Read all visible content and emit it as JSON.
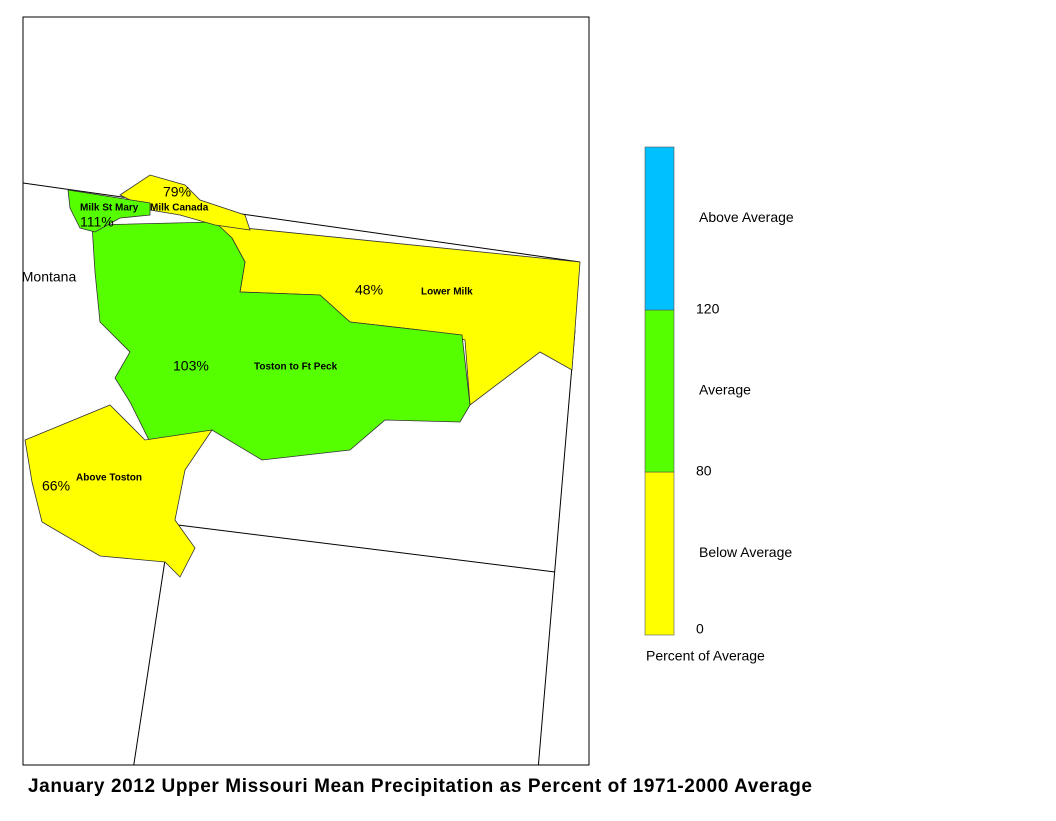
{
  "map": {
    "title": "January 2012 Upper Missouri Mean Precipitation as Percent of 1971-2000 Average",
    "state_label": "Montana",
    "basins": [
      {
        "name": "Milk St Mary",
        "percent": "111%"
      },
      {
        "name": "Milk Canada",
        "percent": "79%"
      },
      {
        "name": "Lower Milk",
        "percent": "48%"
      },
      {
        "name": "Toston to Ft Peck",
        "percent": "103%"
      },
      {
        "name": "Above Toston",
        "percent": "66%"
      }
    ],
    "legend": {
      "title": "Percent of Average",
      "classes": [
        {
          "label": "Below Average",
          "color": "#ffff00"
        },
        {
          "label": "Average",
          "color": "#55ff00"
        },
        {
          "label": "Above Average",
          "color": "#00c0ff"
        }
      ],
      "ticks": [
        "0",
        "80",
        "120"
      ]
    }
  }
}
